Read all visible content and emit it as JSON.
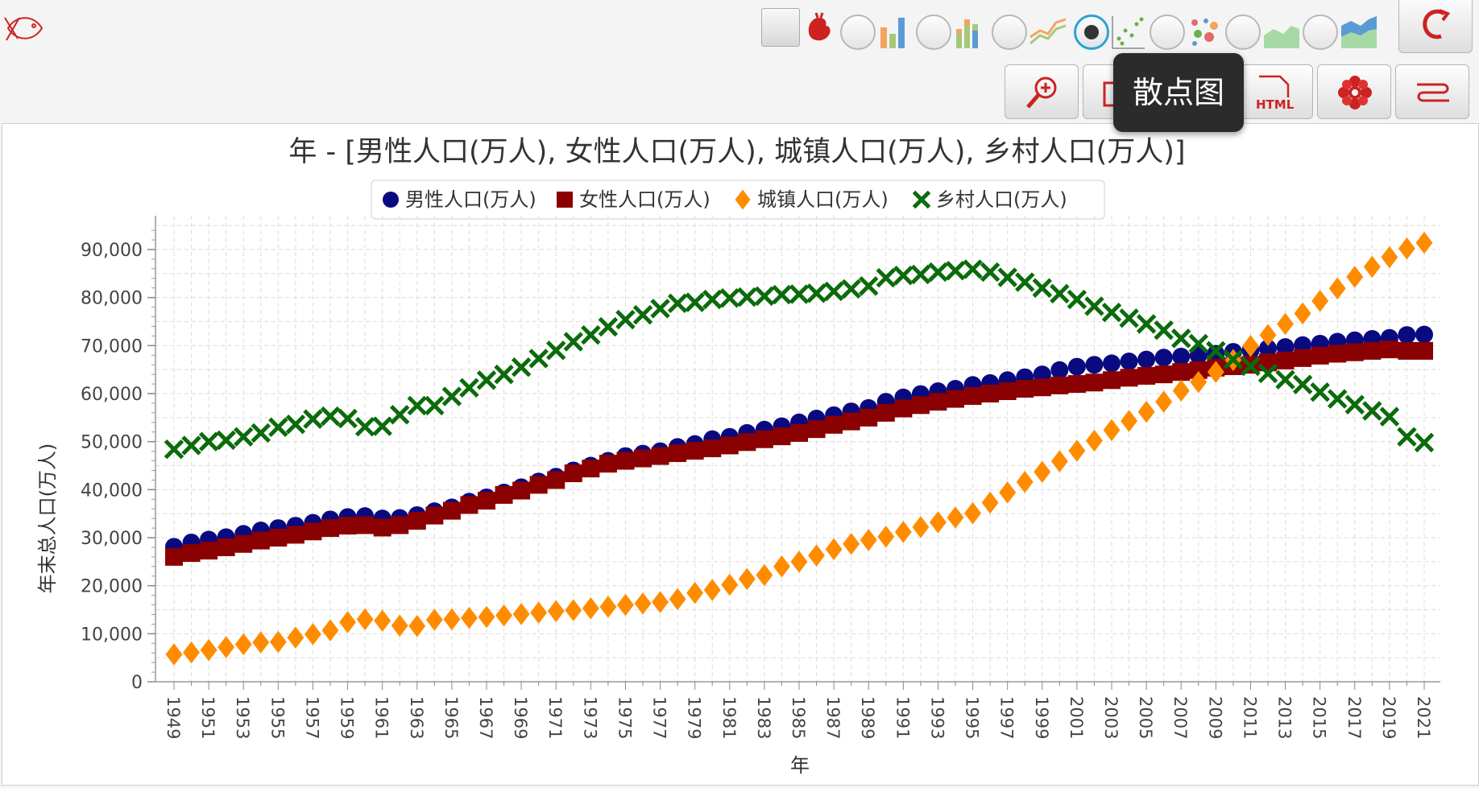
{
  "toolbar": {
    "chart_types": [
      "bar-chart",
      "stacked-bar-chart",
      "line-chart",
      "scatter-chart",
      "bubble-chart",
      "area-chart",
      "stacked-area-chart"
    ],
    "selected_chart_type": "scatter-chart",
    "tooltip": "散点图",
    "html_button_label": "HTML"
  },
  "chart_data": {
    "type": "scatter",
    "title": "年 - [男性人口(万人), 女性人口(万人), 城镇人口(万人), 乡村人口(万人)]",
    "xlabel": "年",
    "ylabel": "年末总人口(万人)",
    "xlim": [
      1949,
      2021
    ],
    "ylim": [
      0,
      90000
    ],
    "yticks": [
      0,
      10000,
      20000,
      30000,
      40000,
      50000,
      60000,
      70000,
      80000,
      90000
    ],
    "ytick_labels": [
      "0",
      "10,000",
      "20,000",
      "30,000",
      "40,000",
      "50,000",
      "60,000",
      "70,000",
      "80,000",
      "90,000"
    ],
    "x_tick_labels": [
      "1949",
      "1951",
      "1953",
      "1955",
      "1957",
      "1959",
      "1961",
      "1963",
      "1965",
      "1967",
      "1969",
      "1971",
      "1973",
      "1975",
      "1977",
      "1979",
      "1981",
      "1983",
      "1985",
      "1987",
      "1989",
      "1991",
      "1993",
      "1995",
      "1997",
      "1999",
      "2001",
      "2003",
      "2005",
      "2007",
      "2009",
      "2011",
      "2013",
      "2015",
      "2017",
      "2019",
      "2021"
    ],
    "grid": true,
    "legend_position": "top",
    "x": [
      1949,
      1950,
      1951,
      1952,
      1953,
      1954,
      1955,
      1956,
      1957,
      1958,
      1959,
      1960,
      1961,
      1962,
      1963,
      1964,
      1965,
      1966,
      1967,
      1968,
      1969,
      1970,
      1971,
      1972,
      1973,
      1974,
      1975,
      1976,
      1977,
      1978,
      1979,
      1980,
      1981,
      1982,
      1983,
      1984,
      1985,
      1986,
      1987,
      1988,
      1989,
      1990,
      1991,
      1992,
      1993,
      1994,
      1995,
      1996,
      1997,
      1998,
      1999,
      2000,
      2001,
      2002,
      2003,
      2004,
      2005,
      2006,
      2007,
      2008,
      2009,
      2010,
      2011,
      2012,
      2013,
      2014,
      2015,
      2016,
      2017,
      2018,
      2019,
      2020,
      2021
    ],
    "series": [
      {
        "name": "男性人口(万人)",
        "marker": "circle",
        "color": "#0a0a80",
        "values": [
          28100,
          29000,
          29600,
          30100,
          30800,
          31500,
          32000,
          32500,
          33100,
          33800,
          34300,
          34500,
          34000,
          34100,
          34700,
          35500,
          36300,
          37500,
          38400,
          39400,
          40500,
          41700,
          42700,
          44000,
          45000,
          46000,
          47000,
          47500,
          48000,
          48900,
          49500,
          50500,
          51000,
          51800,
          52500,
          53200,
          54000,
          54800,
          55500,
          56300,
          57000,
          58300,
          59200,
          59900,
          60500,
          61000,
          61800,
          62200,
          62800,
          63400,
          64000,
          64900,
          65600,
          66000,
          66300,
          66700,
          67100,
          67500,
          67700,
          68000,
          68300,
          68700,
          69000,
          69400,
          69700,
          70100,
          70400,
          70800,
          71100,
          71400,
          71600,
          72200,
          72300
        ]
      },
      {
        "name": "女性人口(万人)",
        "marker": "square",
        "color": "#8b0000",
        "values": [
          26000,
          26800,
          27300,
          28000,
          28700,
          29400,
          30000,
          30600,
          31300,
          32000,
          32500,
          32600,
          32100,
          32600,
          33500,
          34600,
          35600,
          36800,
          37700,
          38900,
          39800,
          41000,
          42000,
          43400,
          44400,
          45400,
          46000,
          46500,
          47000,
          47600,
          48100,
          48600,
          49200,
          49900,
          50500,
          51100,
          51800,
          52600,
          53500,
          54200,
          55000,
          56000,
          56900,
          57600,
          58300,
          58900,
          59500,
          60000,
          60500,
          61000,
          61300,
          61700,
          62000,
          62300,
          62800,
          63300,
          63700,
          64000,
          64500,
          64900,
          65400,
          65700,
          66000,
          66500,
          66900,
          67400,
          67900,
          68300,
          68600,
          68900,
          69200,
          68900,
          68900
        ]
      },
      {
        "name": "城镇人口(万人)",
        "marker": "diamond",
        "color": "#ff8c00",
        "values": [
          5700,
          6100,
          6600,
          7200,
          7800,
          8200,
          8300,
          9200,
          9900,
          10700,
          12400,
          13000,
          12700,
          11700,
          11600,
          12900,
          13000,
          13300,
          13500,
          13800,
          14100,
          14400,
          14700,
          14900,
          15300,
          15600,
          16000,
          16300,
          16600,
          17200,
          18500,
          19100,
          20200,
          21400,
          22200,
          24000,
          25000,
          26300,
          27600,
          28700,
          29500,
          30200,
          31200,
          32200,
          33200,
          34200,
          35100,
          37300,
          39400,
          41600,
          43700,
          45900,
          48100,
          50200,
          52400,
          54300,
          56200,
          58300,
          60600,
          62400,
          64500,
          67000,
          69900,
          72200,
          74500,
          76700,
          79300,
          81900,
          84300,
          86400,
          88400,
          90200,
          91400
        ]
      },
      {
        "name": "乡村人口(万人)",
        "marker": "cross",
        "color": "#0b6b0b",
        "values": [
          48400,
          49200,
          50000,
          50300,
          51000,
          51800,
          53000,
          53600,
          54700,
          55300,
          54800,
          53100,
          53200,
          55600,
          57500,
          57500,
          59400,
          61200,
          62800,
          64000,
          65500,
          67300,
          69000,
          70800,
          72200,
          73900,
          75400,
          76400,
          77700,
          78800,
          79000,
          79600,
          79900,
          80100,
          80300,
          80600,
          80700,
          80900,
          81300,
          81800,
          82400,
          84100,
          84600,
          84800,
          85300,
          85600,
          85900,
          85300,
          84200,
          83200,
          82000,
          80800,
          79600,
          78200,
          76900,
          75700,
          74500,
          73200,
          71500,
          70400,
          68900,
          67100,
          65700,
          64200,
          62900,
          61900,
          60300,
          58900,
          57700,
          56400,
          55200,
          51000,
          49800
        ]
      }
    ]
  }
}
